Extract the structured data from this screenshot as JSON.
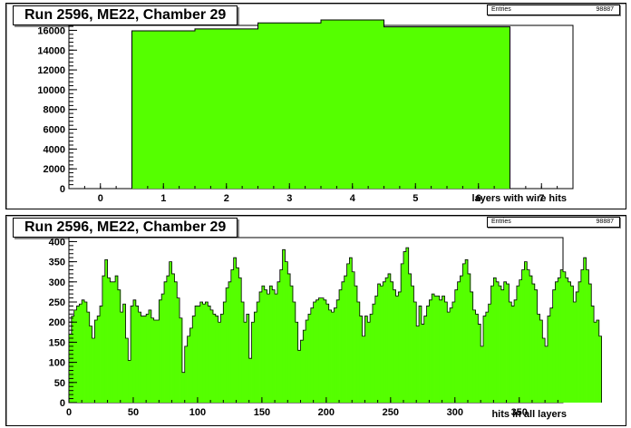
{
  "chart_data": [
    {
      "type": "bar",
      "title": "Run 2596, ME22, Chamber 29",
      "xlabel": "layers with wire hits",
      "ylabel": "",
      "stats": {
        "entries_label": "Entries",
        "entries_value": "98887"
      },
      "xlim": [
        -0.5,
        7.5
      ],
      "ylim": [
        0,
        16500
      ],
      "x_ticks": [
        "0",
        "1",
        "2",
        "3",
        "4",
        "5",
        "6",
        "7"
      ],
      "y_ticks": [
        "0",
        "2000",
        "4000",
        "6000",
        "8000",
        "10000",
        "12000",
        "14000",
        "16000"
      ],
      "categories": [
        "1",
        "2",
        "3",
        "4",
        "5",
        "6"
      ],
      "values": [
        15950,
        16150,
        16750,
        17050,
        16350,
        16350
      ],
      "color": "#55ff00"
    },
    {
      "type": "bar",
      "title": "Run 2596, ME22, Chamber 29",
      "xlabel": "hits in all layers",
      "ylabel": "",
      "stats": {
        "entries_label": "Entries",
        "entries_value": "98887"
      },
      "xlim": [
        0,
        384
      ],
      "ylim": [
        0,
        410
      ],
      "x_ticks": [
        "0",
        "50",
        "100",
        "150",
        "200",
        "250",
        "300",
        "350"
      ],
      "y_ticks": [
        "0",
        "50",
        "100",
        "150",
        "200",
        "250",
        "300",
        "350",
        "400"
      ],
      "bin_width": 2,
      "values": [
        170,
        215,
        230,
        240,
        245,
        255,
        250,
        225,
        190,
        160,
        205,
        215,
        240,
        315,
        355,
        310,
        300,
        300,
        315,
        280,
        225,
        245,
        160,
        105,
        240,
        255,
        240,
        225,
        215,
        215,
        220,
        230,
        210,
        205,
        205,
        255,
        270,
        300,
        315,
        350,
        320,
        300,
        260,
        210,
        75,
        140,
        165,
        185,
        215,
        240,
        240,
        250,
        245,
        250,
        240,
        230,
        220,
        215,
        200,
        220,
        250,
        285,
        300,
        330,
        360,
        335,
        310,
        250,
        200,
        220,
        110,
        200,
        225,
        250,
        275,
        290,
        280,
        270,
        290,
        280,
        270,
        300,
        330,
        380,
        350,
        320,
        290,
        250,
        200,
        130,
        155,
        180,
        205,
        220,
        235,
        250,
        255,
        260,
        260,
        255,
        245,
        230,
        225,
        235,
        255,
        280,
        300,
        315,
        345,
        360,
        325,
        290,
        250,
        215,
        165,
        215,
        200,
        220,
        245,
        265,
        295,
        290,
        300,
        310,
        320,
        300,
        280,
        265,
        275,
        345,
        375,
        385,
        320,
        290,
        250,
        190,
        240,
        195,
        215,
        240,
        255,
        270,
        265,
        265,
        255,
        265,
        250,
        225,
        235,
        250,
        280,
        300,
        315,
        345,
        355,
        320,
        275,
        230,
        220,
        195,
        140,
        215,
        225,
        245,
        290,
        310,
        300,
        290,
        280,
        300,
        295,
        250,
        240,
        255,
        290,
        305,
        330,
        350,
        330,
        315,
        295,
        280,
        220,
        205,
        160,
        140,
        215,
        235,
        280,
        300,
        310,
        330,
        325,
        310,
        300,
        290,
        250,
        275,
        300,
        330,
        360,
        330,
        295,
        240,
        200,
        205,
        165
      ]
    }
  ]
}
